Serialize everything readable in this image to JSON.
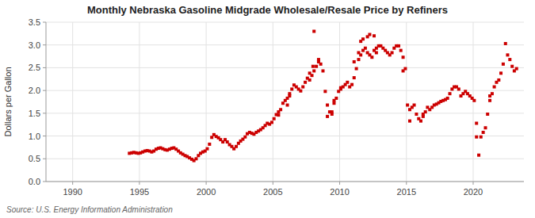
{
  "chart_data": {
    "type": "scatter",
    "title": "Monthly Nebraska Gasoline Midgrade Wholesale/Resale Price by Refiners",
    "ylabel": "Dollars per Gallon",
    "annotations": [
      "Source: U.S. Energy Information Administration"
    ],
    "color": "#CC0000",
    "marker": "square",
    "grid": true,
    "xlim": [
      1988.0,
      2023.8
    ],
    "ylim": [
      0.0,
      3.5
    ],
    "xticks": [
      1990,
      1995,
      2000,
      2005,
      2010,
      2015,
      2020
    ],
    "yticks": [
      {
        "value": 0.0,
        "label": "0.0"
      },
      0.5,
      {
        "value": 1.0,
        "label": "1.0"
      },
      1.5,
      {
        "value": 2.0,
        "label": "2.0"
      },
      2.5,
      {
        "value": 3.0,
        "label": "3.0"
      },
      3.5
    ],
    "x": [
      1994.25,
      1994.42,
      1994.58,
      1994.75,
      1994.92,
      1995.08,
      1995.25,
      1995.42,
      1995.58,
      1995.75,
      1995.92,
      1996.08,
      1996.25,
      1996.42,
      1996.58,
      1996.75,
      1996.92,
      1997.08,
      1997.25,
      1997.42,
      1997.58,
      1997.75,
      1997.92,
      1998.08,
      1998.25,
      1998.42,
      1998.58,
      1998.75,
      1998.92,
      1999.08,
      1999.25,
      1999.42,
      1999.58,
      1999.75,
      1999.92,
      2000.08,
      2000.25,
      2000.42,
      2000.58,
      2000.75,
      2000.92,
      2001.08,
      2001.25,
      2001.42,
      2001.58,
      2001.75,
      2001.92,
      2002.08,
      2002.25,
      2002.42,
      2002.58,
      2002.75,
      2002.92,
      2003.08,
      2003.25,
      2003.42,
      2003.58,
      2003.75,
      2003.92,
      2004.08,
      2004.25,
      2004.42,
      2004.58,
      2004.75,
      2004.92,
      2005.08,
      2005.25,
      2005.42,
      2005.58,
      2005.75,
      2005.92,
      2006.08,
      2006.25,
      2006.42,
      2006.58,
      2006.75,
      2006.92,
      2007.08,
      2007.25,
      2007.42,
      2007.58,
      2007.75,
      2007.92,
      2008.08,
      2008.25,
      2008.42,
      2008.58,
      2008.75,
      2008.92,
      2009.08,
      2009.25,
      2009.42,
      2009.58,
      2009.75,
      2009.92,
      2010.08,
      2010.25,
      2010.42,
      2010.58,
      2010.75,
      2010.92,
      2011.08,
      2011.25,
      2011.42,
      2011.58,
      2011.75,
      2011.92,
      2012.08,
      2012.25,
      2012.42,
      2012.58,
      2012.75,
      2012.92,
      2013.08,
      2013.25,
      2013.42,
      2013.58,
      2013.75,
      2013.92,
      2014.08,
      2014.25,
      2014.42,
      2014.58,
      2014.75,
      2014.92,
      2015.08,
      2015.25,
      2015.42,
      2015.58,
      2015.75,
      2015.92,
      2016.08,
      2016.25,
      2016.42,
      2016.58,
      2016.75,
      2016.92,
      2017.08,
      2017.25,
      2017.42,
      2017.58,
      2017.75,
      2017.92,
      2018.08,
      2018.25,
      2018.42,
      2018.58,
      2018.75,
      2018.92,
      2019.08,
      2019.25,
      2019.42,
      2019.58,
      2019.75,
      2019.92,
      2020.08,
      2020.25,
      2020.42,
      2020.58,
      2020.75,
      2020.92,
      2021.08,
      2021.25,
      2021.42,
      2021.58,
      2021.75,
      2021.92,
      2022.08,
      2022.25,
      2022.42,
      2022.58,
      2022.75,
      2022.92,
      2023.08,
      2023.25,
      2008.08,
      2009.08,
      2010.08,
      2011.08,
      2011.42,
      2011.58,
      2011.75,
      2012.08,
      2012.25,
      2012.58,
      2012.75,
      2005.42,
      2006.08,
      2006.25,
      2014.75,
      2015.25,
      2016.25,
      2020.25,
      2021.25,
      2007.75,
      2008.0,
      2008.42,
      2009.42,
      2009.58
    ],
    "values": [
      0.62,
      0.63,
      0.64,
      0.63,
      0.62,
      0.63,
      0.65,
      0.67,
      0.68,
      0.67,
      0.65,
      0.67,
      0.71,
      0.73,
      0.74,
      0.72,
      0.7,
      0.69,
      0.71,
      0.73,
      0.74,
      0.71,
      0.67,
      0.63,
      0.6,
      0.57,
      0.55,
      0.52,
      0.49,
      0.46,
      0.5,
      0.57,
      0.62,
      0.65,
      0.67,
      0.72,
      0.82,
      0.97,
      1.03,
      0.99,
      0.96,
      0.92,
      0.87,
      0.92,
      0.87,
      0.81,
      0.77,
      0.72,
      0.77,
      0.84,
      0.89,
      0.93,
      0.98,
      1.05,
      1.08,
      1.06,
      1.04,
      1.08,
      1.11,
      1.14,
      1.18,
      1.23,
      1.28,
      1.26,
      1.3,
      1.38,
      1.47,
      1.53,
      1.58,
      1.72,
      1.78,
      1.83,
      1.93,
      2.03,
      2.12,
      2.08,
      2.03,
      1.99,
      2.08,
      2.18,
      2.27,
      2.23,
      2.33,
      2.43,
      2.53,
      2.68,
      2.58,
      2.43,
      1.98,
      1.68,
      1.53,
      1.48,
      1.72,
      1.83,
      1.98,
      2.03,
      2.08,
      2.13,
      2.18,
      2.08,
      2.13,
      2.28,
      2.48,
      2.68,
      2.78,
      2.88,
      2.93,
      2.83,
      2.78,
      2.73,
      2.88,
      2.93,
      2.98,
      2.98,
      2.93,
      2.88,
      2.83,
      2.78,
      2.83,
      2.93,
      2.98,
      2.98,
      2.88,
      2.73,
      2.48,
      1.68,
      1.58,
      1.63,
      1.68,
      1.48,
      1.38,
      1.33,
      1.48,
      1.53,
      1.63,
      1.58,
      1.63,
      1.68,
      1.7,
      1.73,
      1.76,
      1.78,
      1.8,
      1.83,
      1.93,
      2.03,
      2.08,
      2.08,
      2.03,
      1.88,
      1.93,
      1.98,
      1.93,
      1.88,
      1.83,
      1.78,
      1.28,
      0.58,
      0.98,
      1.08,
      1.18,
      1.48,
      1.78,
      1.93,
      2.08,
      2.18,
      2.23,
      2.38,
      2.58,
      3.03,
      2.78,
      2.68,
      2.53,
      2.43,
      2.48,
      3.3,
      1.43,
      2.06,
      2.63,
      2.83,
      3.08,
      3.13,
      3.18,
      3.23,
      3.2,
      2.83,
      1.46,
      1.68,
      1.88,
      2.43,
      1.33,
      1.43,
      0.98,
      1.88,
      2.38,
      2.53,
      2.63,
      1.53,
      1.78
    ]
  }
}
